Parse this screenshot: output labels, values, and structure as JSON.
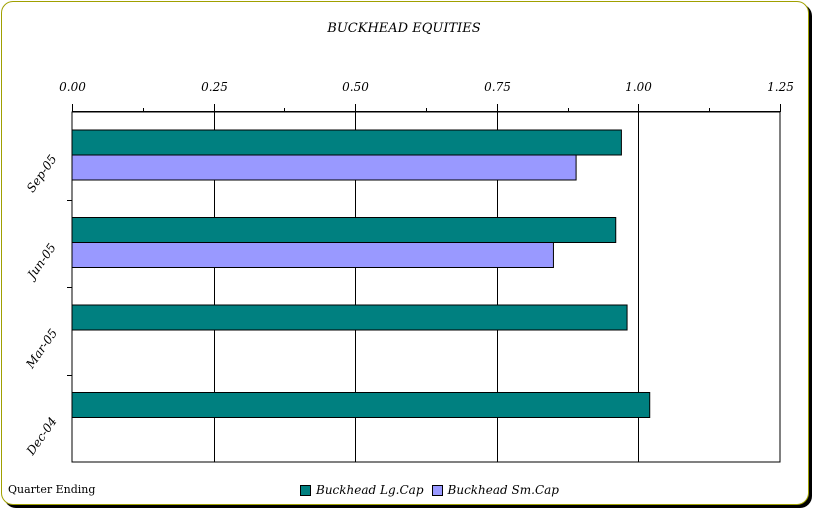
{
  "chart_data": {
    "type": "bar",
    "orientation": "horizontal",
    "title": "BUCKHEAD EQUITIES",
    "categories": [
      "Sep-05",
      "Jun-05",
      "Mar-05",
      "Dec-04"
    ],
    "series": [
      {
        "name": "Buckhead Lg.Cap",
        "values": [
          0.97,
          0.96,
          0.98,
          1.02
        ],
        "color": "#008080"
      },
      {
        "name": "Buckhead Sm.Cap",
        "values": [
          0.89,
          0.85,
          null,
          null
        ],
        "color": "#9999ff"
      }
    ],
    "xlim": [
      0,
      1.25
    ],
    "xticks": [
      "0.00",
      "0.25",
      "0.50",
      "0.75",
      "1.00",
      "1.25"
    ],
    "x_axis_position": "top",
    "grid": true,
    "legend_position": "bottom"
  },
  "footer": {
    "note": "Quarter Ending"
  }
}
